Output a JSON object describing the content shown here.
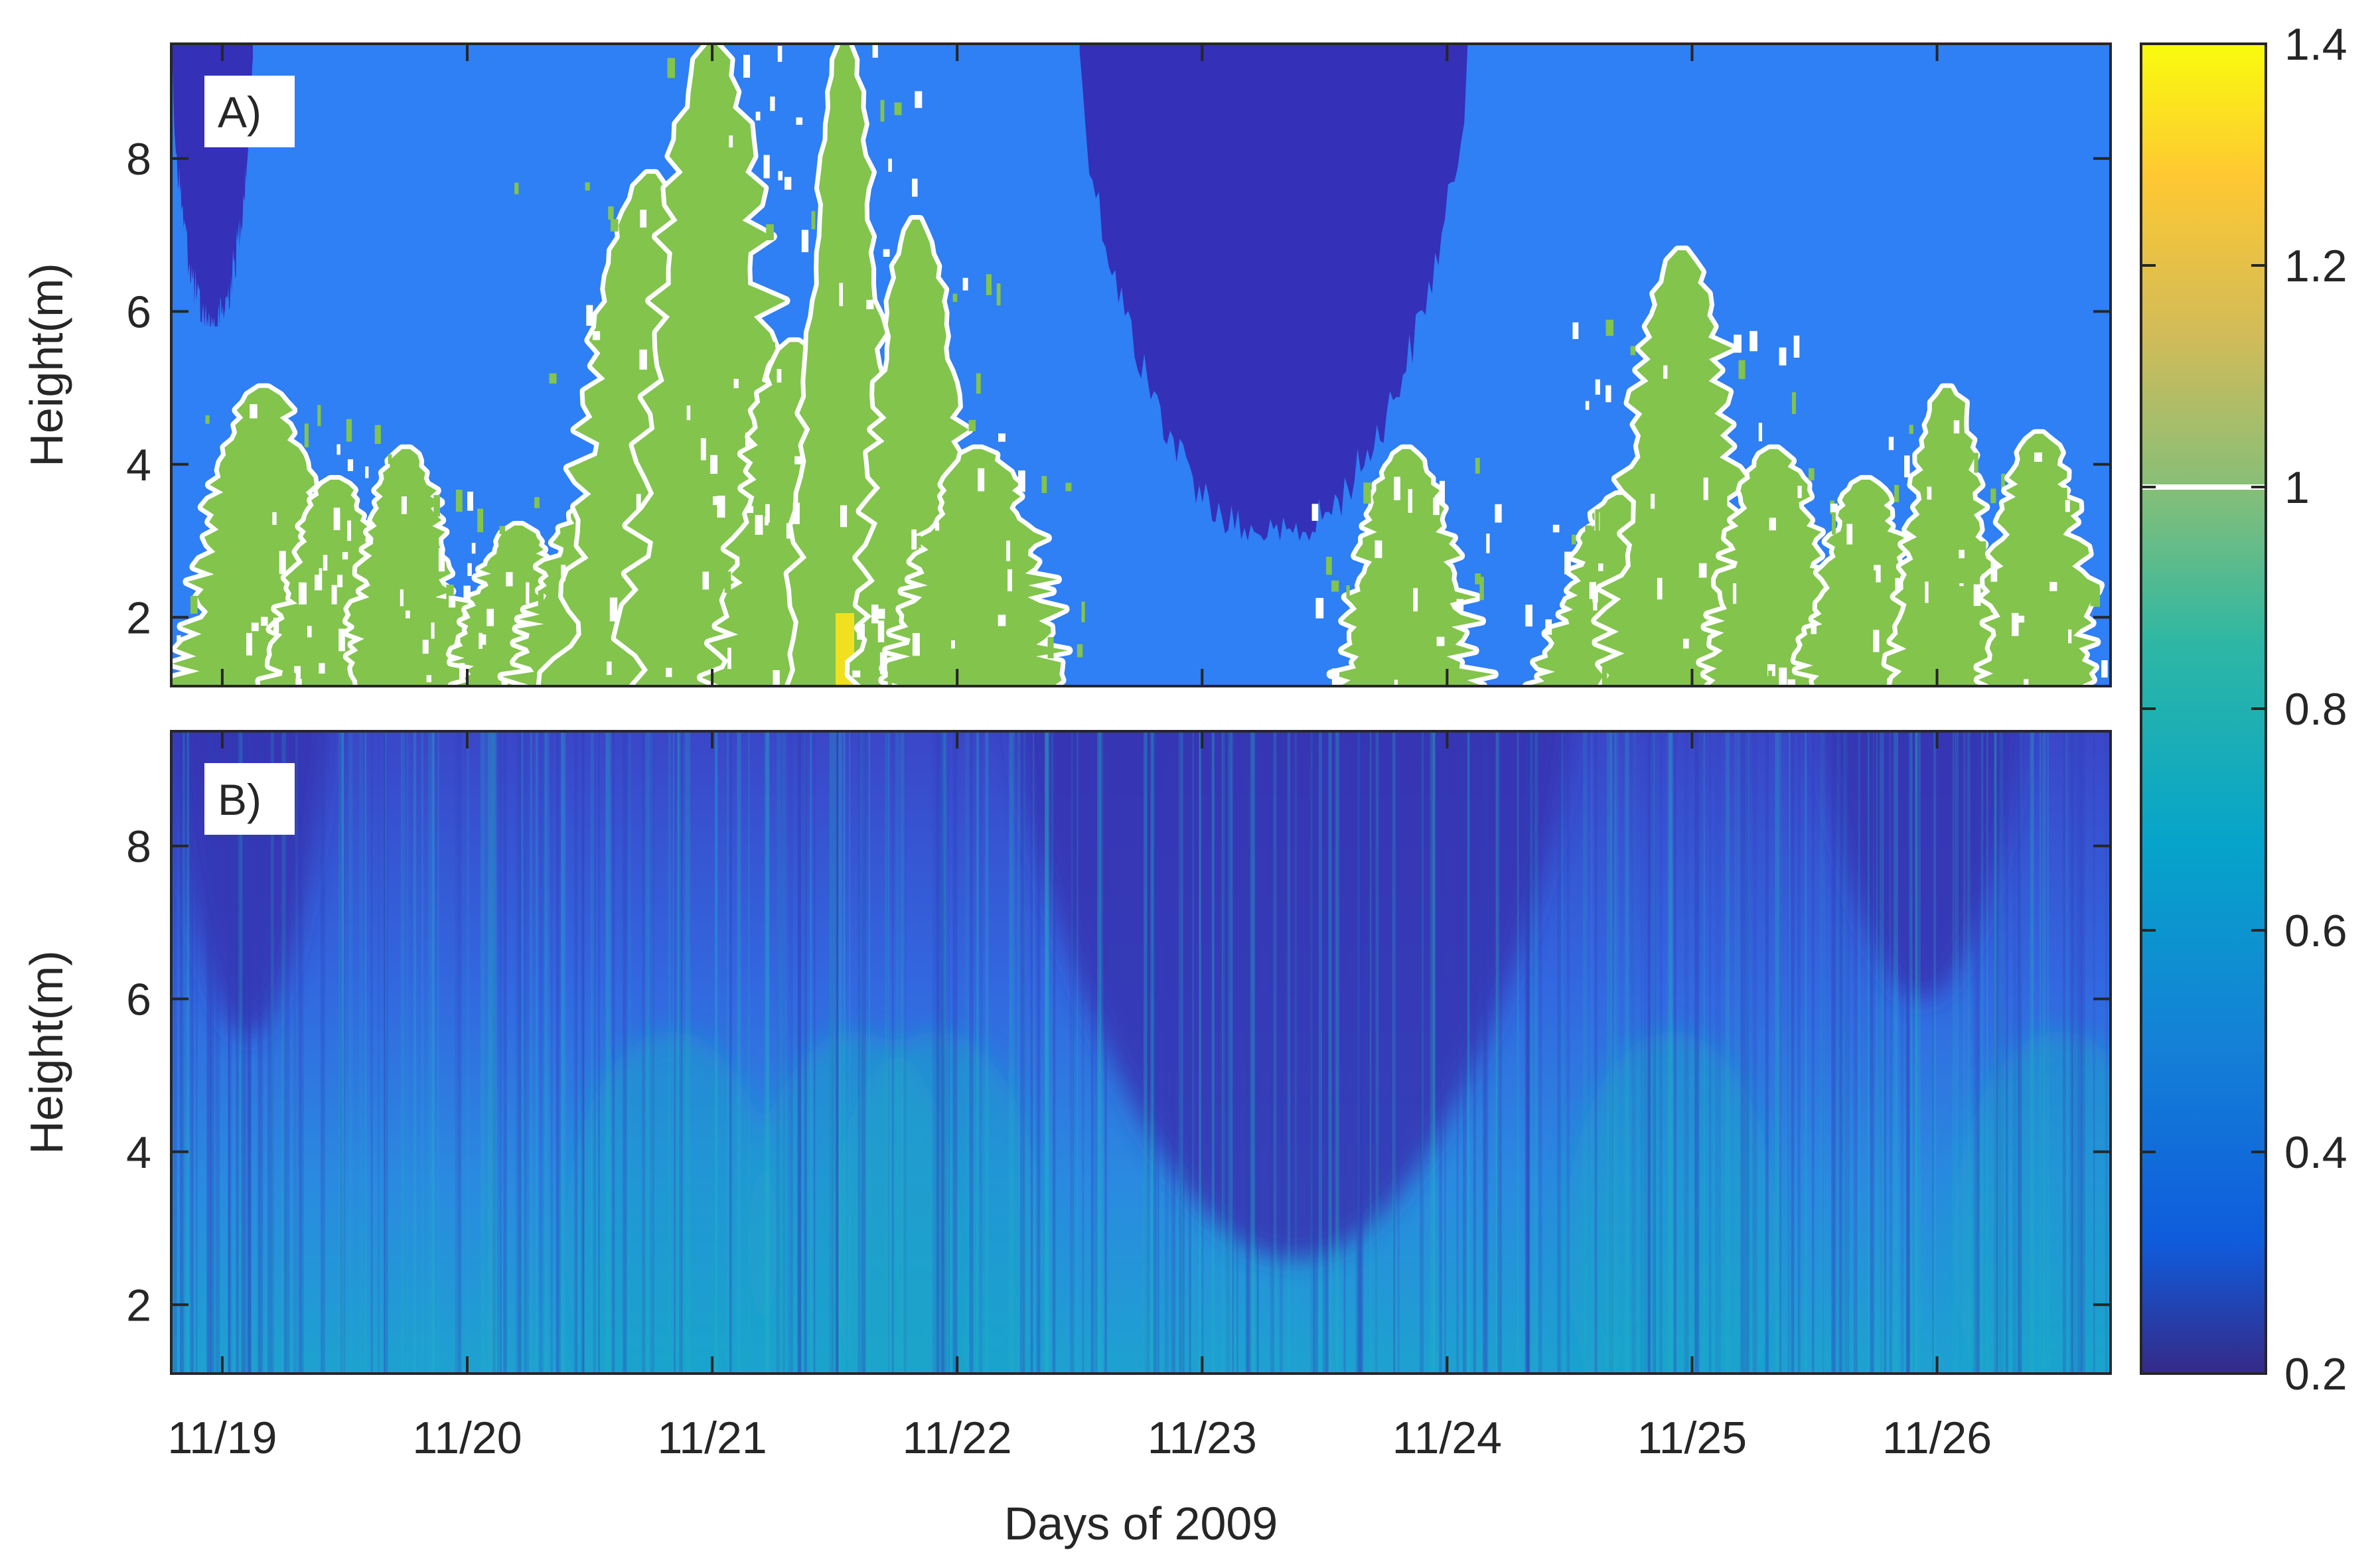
{
  "chart_data": [
    {
      "type": "heatmap",
      "panel_label": "A)",
      "xlabel": "",
      "ylabel": "Height(m)",
      "xlim": [
        "2009-11-18T19:00",
        "2009-11-26T17:00"
      ],
      "ylim": [
        1.1,
        9.5
      ],
      "y_ticks": [
        2,
        4,
        6,
        8
      ],
      "x_ticks": [
        "11/19",
        "11/20",
        "11/21",
        "11/22",
        "11/23",
        "11/24",
        "11/25",
        "11/26"
      ],
      "description_values": {
        "background_value": 0.5,
        "dark_region_value": 0.3,
        "plume_value": 1.0,
        "peak_value": 1.3
      },
      "plumes": [
        {
          "x": "2009-11-19T04:00",
          "top": 5.0,
          "value": 1.0
        },
        {
          "x": "2009-11-19T11:00",
          "top": 3.8,
          "value": 1.05
        },
        {
          "x": "2009-11-19T18:00",
          "top": 4.2,
          "value": 1.0
        },
        {
          "x": "2009-11-20T05:00",
          "top": 3.2,
          "value": 1.0
        },
        {
          "x": "2009-11-20T13:00",
          "top": 3.6,
          "value": 1.1
        },
        {
          "x": "2009-11-20T18:00",
          "top": 7.8,
          "value": 1.0
        },
        {
          "x": "2009-11-21T00:00",
          "top": 9.5,
          "value": 1.0
        },
        {
          "x": "2009-11-21T08:00",
          "top": 5.6,
          "value": 1.0
        },
        {
          "x": "2009-11-21T13:00",
          "top": 9.5,
          "value": 1.2
        },
        {
          "x": "2009-11-21T20:00",
          "top": 7.2,
          "value": 1.0
        },
        {
          "x": "2009-11-22T02:00",
          "top": 4.2,
          "value": 1.0
        },
        {
          "x": "2009-11-23T20:00",
          "top": 4.2,
          "value": 1.0
        },
        {
          "x": "2009-11-24T17:00",
          "top": 3.6,
          "value": 1.0
        },
        {
          "x": "2009-11-24T23:00",
          "top": 6.8,
          "value": 1.0
        },
        {
          "x": "2009-11-25T08:00",
          "top": 4.2,
          "value": 1.0
        },
        {
          "x": "2009-11-25T17:00",
          "top": 3.8,
          "value": 1.0
        },
        {
          "x": "2009-11-26T01:00",
          "top": 5.0,
          "value": 1.0
        },
        {
          "x": "2009-11-26T10:00",
          "top": 4.4,
          "value": 1.0
        }
      ]
    },
    {
      "type": "heatmap",
      "panel_label": "B)",
      "xlabel": "Days of 2009",
      "ylabel": "Height(m)",
      "xlim": [
        "2009-11-18T19:00",
        "2009-11-26T17:00"
      ],
      "ylim": [
        1.1,
        9.5
      ],
      "y_ticks": [
        2,
        4,
        6,
        8
      ],
      "x_ticks": [
        "11/19",
        "11/20",
        "11/21",
        "11/22",
        "11/23",
        "11/24",
        "11/25",
        "11/26"
      ],
      "description_values": {
        "near_ground_value": 0.6,
        "upper_value": 0.35,
        "dark_period_value": 0.3
      }
    }
  ],
  "colorbar": {
    "colormap": "parula",
    "range": [
      0.2,
      1.4
    ],
    "ticks": [
      "0.2",
      "0.4",
      "0.6",
      "0.8",
      "1",
      "1.2",
      "1.4"
    ],
    "marker_value": 1.0,
    "marker_color": "#ffffff"
  },
  "colors": {
    "background_blue": "#2f7ff5",
    "dark_blue": "#3430b8",
    "plume_green": "#82c44c",
    "peak_yellow": "#f0e020"
  }
}
